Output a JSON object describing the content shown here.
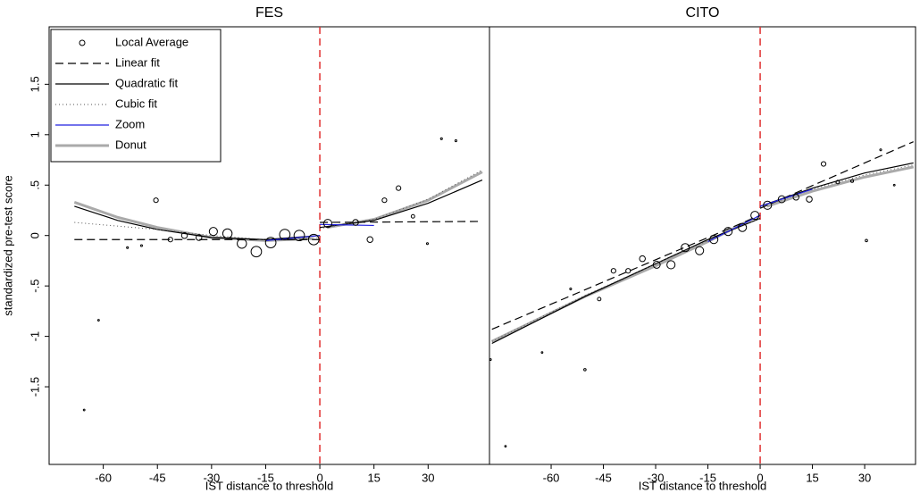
{
  "chart_data": [
    {
      "type": "scatter",
      "title": "FES",
      "x_label": "IST distance to threshold",
      "y_label": "standardized pre-test score",
      "xlim": [
        -75,
        47
      ],
      "ylim": [
        -2.27,
        2.07
      ],
      "xticks": [
        -60,
        -45,
        -30,
        -15,
        0,
        15,
        30
      ],
      "yticks": [
        -1.5,
        -1,
        {
          "value": -0.5,
          "label": "-.5"
        },
        0,
        {
          "value": 0.5,
          "label": ".5"
        },
        1,
        1.5
      ],
      "threshold": 0,
      "threshold_color": "#e03030",
      "legend": "upper left",
      "points": {
        "name": "Local Average",
        "x": [
          -65.3,
          -61.3,
          -53.3,
          -49.4,
          -45.4,
          -41.4,
          -37.5,
          -33.5,
          -29.5,
          -25.6,
          -21.6,
          -17.6,
          -13.6,
          -9.7,
          -5.7,
          -1.7,
          2.2,
          9.9,
          13.9,
          17.9,
          21.8,
          25.8,
          29.8,
          33.7,
          37.7
        ],
        "values": [
          -1.73,
          -0.84,
          -0.12,
          -0.1,
          0.35,
          -0.04,
          0.0,
          -0.02,
          0.04,
          0.02,
          -0.08,
          -0.16,
          -0.07,
          0.01,
          0.0,
          -0.04,
          0.12,
          0.13,
          -0.04,
          0.35,
          0.47,
          0.19,
          -0.08,
          0.96,
          0.94
        ],
        "sizes": [
          0.7,
          0.7,
          0.8,
          0.8,
          2,
          2,
          2.5,
          2.5,
          3.5,
          4,
          4,
          4.5,
          4.5,
          4.5,
          4.5,
          4.5,
          3.5,
          2.5,
          2.5,
          2,
          2,
          1.5,
          0.8,
          0.8,
          0.8
        ]
      },
      "series": [
        {
          "name": "Linear fit",
          "color": "#000000",
          "style": "dashed",
          "pieces": [
            {
              "x": [
                -68,
                0
              ],
              "values": [
                -0.04,
                -0.04
              ]
            },
            {
              "x": [
                0,
                45
              ],
              "values": [
                0.13,
                0.14
              ]
            }
          ]
        },
        {
          "name": "Quadratic fit",
          "color": "#000000",
          "style": "solid",
          "pieces": [
            {
              "x": [
                -68,
                -56,
                -45,
                -30,
                -15,
                0
              ],
              "values": [
                0.29,
                0.15,
                0.06,
                -0.02,
                -0.04,
                0.0
              ]
            },
            {
              "x": [
                0,
                15,
                30,
                45
              ],
              "values": [
                0.08,
                0.15,
                0.32,
                0.55
              ]
            }
          ]
        },
        {
          "name": "Cubic fit",
          "color": "#555555",
          "style": "dotted",
          "pieces": [
            {
              "x": [
                -68,
                -45,
                -30,
                -15,
                0
              ],
              "values": [
                0.13,
                0.06,
                0.0,
                -0.04,
                -0.02
              ]
            },
            {
              "x": [
                0,
                15,
                30,
                45
              ],
              "values": [
                0.07,
                0.16,
                0.36,
                0.65
              ]
            }
          ]
        },
        {
          "name": "Zoom",
          "color": "#2020e0",
          "style": "solid",
          "pieces": [
            {
              "x": [
                -15,
                0
              ],
              "values": [
                -0.05,
                0.0
              ]
            },
            {
              "x": [
                0,
                15
              ],
              "values": [
                0.11,
                0.1
              ]
            }
          ]
        },
        {
          "name": "Donut",
          "color": "#aaaaaa",
          "style": "thick",
          "pieces": [
            {
              "x": [
                -68,
                -56,
                -45,
                -30,
                -15,
                -2
              ],
              "values": [
                0.33,
                0.18,
                0.08,
                -0.02,
                -0.05,
                -0.03
              ]
            },
            {
              "x": [
                2,
                15,
                30,
                45
              ],
              "values": [
                0.08,
                0.16,
                0.35,
                0.63
              ]
            }
          ]
        }
      ]
    },
    {
      "type": "scatter",
      "title": "CITO",
      "x_label": "IST distance to threshold",
      "xlim": [
        -77.7,
        44.6
      ],
      "ylim": [
        -2.27,
        2.07
      ],
      "xticks": [
        -60,
        -45,
        -30,
        -15,
        0,
        15,
        30
      ],
      "threshold": 0,
      "threshold_color": "#e03030",
      "points": {
        "x": [
          -77.4,
          -73.1,
          -62.6,
          -54.4,
          -50.3,
          -46.2,
          -42.1,
          -37.9,
          -33.8,
          -29.7,
          -25.6,
          -21.5,
          -17.4,
          -13.3,
          -9.2,
          -5.1,
          -1.5,
          2.1,
          6.2,
          10.3,
          14.1,
          18.2,
          22.3,
          26.4,
          30.5,
          34.6,
          38.5
        ],
        "values": [
          -1.23,
          -2.09,
          -1.16,
          -0.53,
          -1.33,
          -0.63,
          -0.35,
          -0.35,
          -0.23,
          -0.29,
          -0.29,
          -0.12,
          -0.15,
          -0.04,
          0.04,
          0.08,
          0.2,
          0.3,
          0.36,
          0.38,
          0.36,
          0.71,
          0.53,
          0.54,
          -0.05,
          0.85,
          0.5
        ],
        "sizes": [
          0.7,
          0.7,
          0.7,
          0.8,
          1,
          1.5,
          2,
          2,
          2.5,
          3,
          3.5,
          3.5,
          3.5,
          3.5,
          3.5,
          3.5,
          3.5,
          3.5,
          3,
          2.5,
          2.5,
          2,
          1.5,
          1.2,
          1,
          0.8,
          0.7
        ]
      },
      "series": [
        {
          "color": "#000000",
          "style": "dashed",
          "pieces": [
            {
              "x": [
                -77,
                0
              ],
              "values": [
                -0.93,
                0.2
              ]
            },
            {
              "x": [
                0,
                44
              ],
              "values": [
                0.27,
                0.93
              ]
            }
          ]
        },
        {
          "color": "#000000",
          "style": "solid",
          "pieces": [
            {
              "x": [
                -77,
                -50,
                -30,
                -15,
                0
              ],
              "values": [
                -1.07,
                -0.6,
                -0.28,
                -0.04,
                0.17
              ]
            },
            {
              "x": [
                0,
                15,
                30,
                44
              ],
              "values": [
                0.29,
                0.47,
                0.62,
                0.72
              ]
            }
          ]
        },
        {
          "color": "#555555",
          "style": "dotted",
          "pieces": [
            {
              "x": [
                -77,
                -50,
                -30,
                -15,
                0
              ],
              "values": [
                -1.05,
                -0.59,
                -0.28,
                -0.05,
                0.17
              ]
            },
            {
              "x": [
                0,
                15,
                30,
                44
              ],
              "values": [
                0.28,
                0.46,
                0.6,
                0.7
              ]
            }
          ]
        },
        {
          "color": "#2020e0",
          "style": "solid",
          "pieces": [
            {
              "x": [
                -15,
                0
              ],
              "values": [
                -0.06,
                0.2
              ]
            },
            {
              "x": [
                0,
                15
              ],
              "values": [
                0.29,
                0.46
              ]
            }
          ]
        },
        {
          "color": "#aaaaaa",
          "style": "thick",
          "pieces": [
            {
              "x": [
                -77,
                -50,
                -30,
                -15,
                -2
              ],
              "values": [
                -1.05,
                -0.6,
                -0.3,
                -0.06,
                0.17
              ]
            },
            {
              "x": [
                2,
                15,
                30,
                44
              ],
              "values": [
                0.29,
                0.44,
                0.58,
                0.68
              ]
            }
          ]
        }
      ]
    }
  ]
}
